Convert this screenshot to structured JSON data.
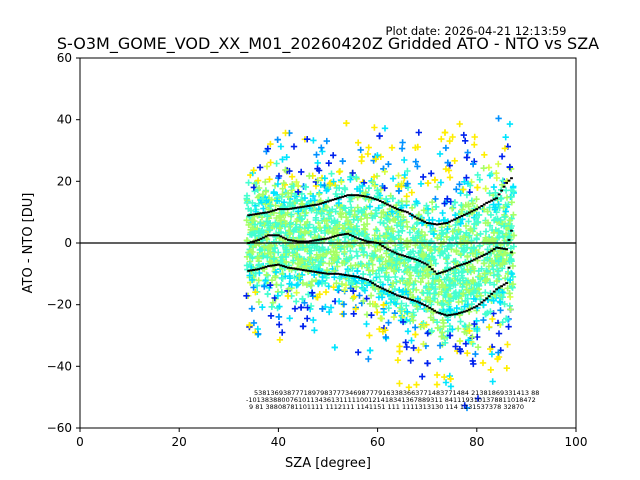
{
  "chart_data": {
    "type": "scatter",
    "plot_date": "Plot date: 2026-04-21 12:13:59",
    "title": "S-O3M_GOME_VOD_XX_M01_20260420Z Gridded ATO - NTO vs SZA",
    "xlabel": "SZA [degree]",
    "ylabel": "ATO - NTO [DU]",
    "xlim": [
      0,
      100
    ],
    "ylim": [
      -60,
      60
    ],
    "x_ticks": [
      "0",
      "20",
      "40",
      "60",
      "80",
      "100"
    ],
    "y_ticks": [
      "−60",
      "−40",
      "−20",
      "0",
      "20",
      "40",
      "60"
    ],
    "zero_line": 0,
    "marker": "+",
    "density_colors": [
      "#0022ee",
      "#0090ff",
      "#00e5ff",
      "#44ffd0",
      "#a6ff66",
      "#d8ff44",
      "#ffee00"
    ],
    "line_color": "#000000",
    "mean_line": [
      [
        34,
        0
      ],
      [
        36,
        1
      ],
      [
        38,
        2.5
      ],
      [
        40,
        2.5
      ],
      [
        42,
        1
      ],
      [
        44,
        0.5
      ],
      [
        46,
        0.5
      ],
      [
        48,
        1
      ],
      [
        50,
        1.5
      ],
      [
        52,
        2.5
      ],
      [
        54,
        3
      ],
      [
        56,
        1.5
      ],
      [
        58,
        0.5
      ],
      [
        60,
        0
      ],
      [
        62,
        -2
      ],
      [
        64,
        -3.5
      ],
      [
        66,
        -4.5
      ],
      [
        68,
        -5.5
      ],
      [
        70,
        -7
      ],
      [
        72,
        -10
      ],
      [
        74,
        -9
      ],
      [
        76,
        -7.5
      ],
      [
        78,
        -6.5
      ],
      [
        80,
        -5
      ],
      [
        82,
        -3.5
      ],
      [
        84,
        -1.5
      ],
      [
        86,
        -2
      ],
      [
        87,
        4
      ]
    ],
    "upper_line": [
      [
        34,
        9
      ],
      [
        36,
        9.5
      ],
      [
        38,
        10
      ],
      [
        40,
        11
      ],
      [
        42,
        11
      ],
      [
        44,
        11.5
      ],
      [
        46,
        12
      ],
      [
        48,
        12.5
      ],
      [
        50,
        13.5
      ],
      [
        52,
        14.5
      ],
      [
        54,
        15.5
      ],
      [
        56,
        15.5
      ],
      [
        58,
        15
      ],
      [
        60,
        14
      ],
      [
        62,
        12.5
      ],
      [
        64,
        11
      ],
      [
        66,
        10
      ],
      [
        68,
        8
      ],
      [
        70,
        6.5
      ],
      [
        72,
        6
      ],
      [
        74,
        6.5
      ],
      [
        76,
        8
      ],
      [
        78,
        9.5
      ],
      [
        80,
        11
      ],
      [
        82,
        13
      ],
      [
        84,
        14.5
      ],
      [
        86,
        19.5
      ],
      [
        87,
        21
      ]
    ],
    "lower_line": [
      [
        34,
        -9
      ],
      [
        36,
        -8.5
      ],
      [
        38,
        -7.5
      ],
      [
        40,
        -7
      ],
      [
        42,
        -8
      ],
      [
        44,
        -8.5
      ],
      [
        46,
        -9
      ],
      [
        48,
        -9.5
      ],
      [
        50,
        -10
      ],
      [
        52,
        -10
      ],
      [
        54,
        -10.5
      ],
      [
        56,
        -11
      ],
      [
        58,
        -12
      ],
      [
        60,
        -14
      ],
      [
        62,
        -15.5
      ],
      [
        64,
        -17
      ],
      [
        66,
        -18
      ],
      [
        68,
        -19
      ],
      [
        70,
        -20.5
      ],
      [
        72,
        -22.5
      ],
      [
        74,
        -23.5
      ],
      [
        76,
        -23
      ],
      [
        78,
        -22
      ],
      [
        80,
        -20.5
      ],
      [
        82,
        -18
      ],
      [
        84,
        -15
      ],
      [
        86,
        -13
      ],
      [
        87,
        -3
      ]
    ],
    "scatter_columns": [
      [
        34,
        18,
        -22
      ],
      [
        36,
        22,
        -25
      ],
      [
        38,
        26,
        -27
      ],
      [
        40,
        28,
        -30
      ],
      [
        42,
        26,
        -28
      ],
      [
        44,
        24,
        -25
      ],
      [
        46,
        25,
        -26
      ],
      [
        48,
        27,
        -27
      ],
      [
        50,
        28,
        -26
      ],
      [
        52,
        30,
        -25
      ],
      [
        54,
        30,
        -25
      ],
      [
        56,
        28,
        -27
      ],
      [
        58,
        27,
        -30
      ],
      [
        60,
        26,
        -33
      ],
      [
        62,
        25,
        -36
      ],
      [
        64,
        25,
        -38
      ],
      [
        66,
        24,
        -40
      ],
      [
        68,
        23,
        -41
      ],
      [
        70,
        22,
        -43
      ],
      [
        72,
        22,
        -46
      ],
      [
        74,
        23,
        -48
      ],
      [
        76,
        24,
        -47
      ],
      [
        78,
        25,
        -45
      ],
      [
        80,
        26,
        -42
      ],
      [
        82,
        28,
        -40
      ],
      [
        84,
        30,
        -36
      ],
      [
        86,
        36,
        -30
      ]
    ],
    "bin_counts": {
      "row1": "5381369387771897983777346987779163383663771483771484 21381869331413 88",
      "row2": "-10138388007610113436131111100121418341367889311 8411193101378811018472",
      "row3": "9 81 38808781101111 1112111 1141151 111 1111313130 114 1131537378 32870"
    }
  }
}
